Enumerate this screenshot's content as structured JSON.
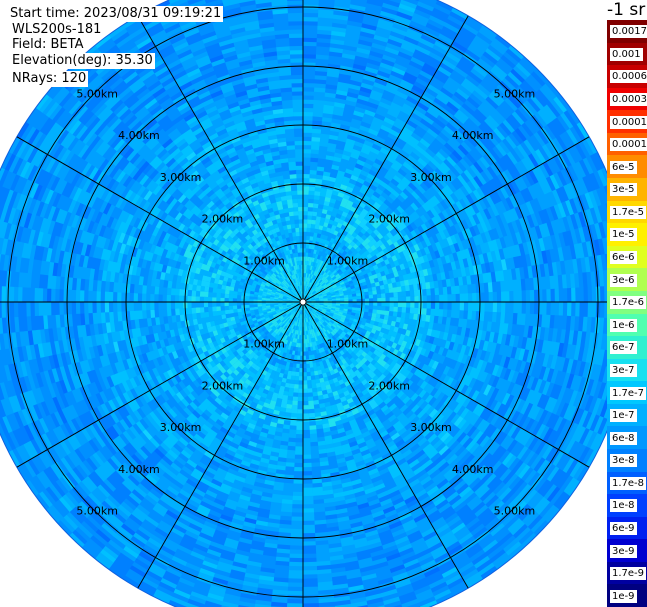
{
  "header": {
    "start_time": "Start time: 2023/08/31 09:19:21",
    "instrument": "WLS200s-181",
    "field": "Field: BETA",
    "elevation": "Elevation(deg): 35.30",
    "nrays": "NRays: 120"
  },
  "colorbar": {
    "unit_label": "-1 sr",
    "entries": [
      {
        "label": "0.0017",
        "color": "#800000"
      },
      {
        "label": "0.001",
        "color": "#a00000"
      },
      {
        "label": "0.0006",
        "color": "#c80000"
      },
      {
        "label": "0.0003",
        "color": "#f00000"
      },
      {
        "label": "0.00017",
        "color": "#ff3000"
      },
      {
        "label": "0.0001",
        "color": "#ff6000"
      },
      {
        "label": "6e-5",
        "color": "#ff8c00"
      },
      {
        "label": "3e-5",
        "color": "#ffb400"
      },
      {
        "label": "1.7e-5",
        "color": "#ffd800"
      },
      {
        "label": "1e-5",
        "color": "#fff000"
      },
      {
        "label": "6e-6",
        "color": "#e0ff20"
      },
      {
        "label": "3e-6",
        "color": "#b0ff50"
      },
      {
        "label": "1.7e-6",
        "color": "#80ff80"
      },
      {
        "label": "1e-6",
        "color": "#50ffb0"
      },
      {
        "label": "6e-7",
        "color": "#30f0d0"
      },
      {
        "label": "3e-7",
        "color": "#18e0f0"
      },
      {
        "label": "1.7e-7",
        "color": "#00c8ff"
      },
      {
        "label": "1e-7",
        "color": "#00b0ff"
      },
      {
        "label": "6e-8",
        "color": "#0098ff"
      },
      {
        "label": "3e-8",
        "color": "#0080ff"
      },
      {
        "label": "1.7e-8",
        "color": "#0060ff"
      },
      {
        "label": "1e-8",
        "color": "#0040ff"
      },
      {
        "label": "6e-9",
        "color": "#0020f0"
      },
      {
        "label": "3e-9",
        "color": "#0000d0"
      },
      {
        "label": "1.7e-9",
        "color": "#0000a0"
      },
      {
        "label": "1e-9",
        "color": "#000080"
      }
    ]
  },
  "chart_data": {
    "type": "heatmap",
    "projection": "polar (PPI scan)",
    "n_rays": 120,
    "range_rings_km": [
      1,
      2,
      3,
      4,
      5
    ],
    "range_labels": [
      "1.00km",
      "2.00km",
      "3.00km",
      "4.00km",
      "5.00km"
    ],
    "spoke_angles_deg": [
      0,
      30,
      60,
      90,
      120,
      150,
      180,
      210,
      240,
      270,
      300,
      330
    ],
    "max_range_km": 5.6,
    "value_profile": [
      {
        "range_km": 0.3,
        "beta": "3e-7"
      },
      {
        "range_km": 0.6,
        "beta": "1.7e-7"
      },
      {
        "range_km": 1.5,
        "beta": "1.7e-7"
      },
      {
        "range_km": 3.0,
        "beta": "1e-7"
      },
      {
        "range_km": 5.0,
        "beta": "6e-8"
      }
    ]
  }
}
